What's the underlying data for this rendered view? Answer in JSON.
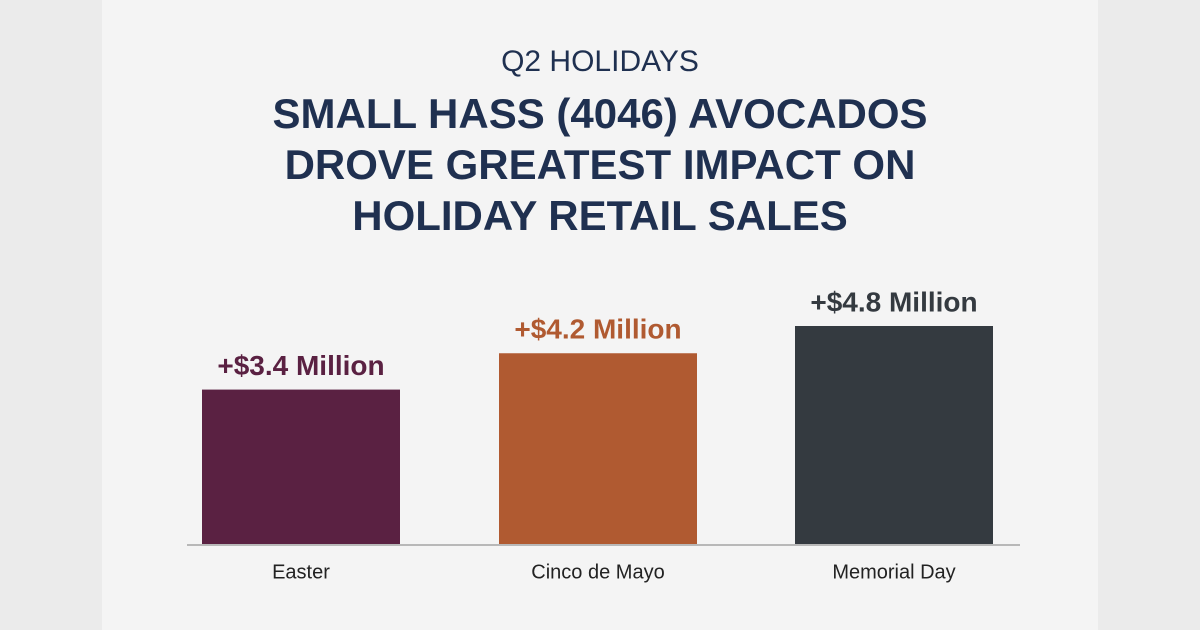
{
  "chart_data": {
    "type": "bar",
    "subtitle": "Q2 HOLIDAYS",
    "title": [
      "SMALL HASS (4046) AVOCADOS",
      "DROVE GREATEST IMPACT ON",
      "HOLIDAY RETAIL SALES"
    ],
    "categories": [
      "Easter",
      "Cinco de Mayo",
      "Memorial Day"
    ],
    "values": [
      3.4,
      4.2,
      4.8
    ],
    "value_labels": [
      "+$3.4 Million",
      "+$4.2 Million",
      "+$4.8 Million"
    ],
    "colors": [
      "#5a2142",
      "#b05a31",
      "#343a40"
    ]
  }
}
